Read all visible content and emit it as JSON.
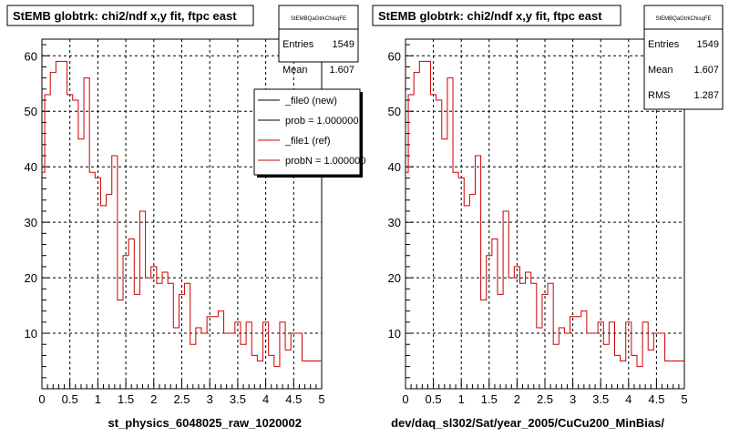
{
  "chart_data": [
    {
      "type": "step",
      "title": "StEMB globtrk: chi2/ndf x,y fit, ftpc east",
      "xlabel": "st_physics_6048025_raw_1020002",
      "xlim": [
        0,
        5
      ],
      "ylim": [
        0,
        63
      ],
      "x_ticks": [
        "0",
        "0.5",
        "1",
        "1.5",
        "2",
        "2.5",
        "3",
        "3.5",
        "4",
        "4.5",
        "5"
      ],
      "y_ticks": [
        "10",
        "20",
        "30",
        "40",
        "50",
        "60"
      ],
      "grid": true,
      "bin_width": 0.1,
      "stats": {
        "name": "StEMBQaGtrkChisqFE",
        "entries_label": "Entries",
        "entries": "1549",
        "mean_label": "Mean",
        "mean": "1.607"
      },
      "legend": {
        "placement": "top-right",
        "entries": [
          "_file0 (new)",
          "prob = 1.000000",
          "_file1 (ref)",
          "probN = 1.000000"
        ],
        "colors": [
          "#000000",
          "#000000",
          "#cc0000",
          "#cc0000"
        ]
      },
      "series": [
        {
          "name": "_file1 (ref)",
          "color": "#cc0000",
          "bin_starts": [
            0,
            0.05,
            0.1,
            0.15,
            0.2,
            0.25,
            0.3,
            0.35,
            0.4,
            0.45,
            0.5,
            0.55,
            0.6,
            0.65,
            0.7,
            0.75,
            0.8,
            0.85,
            0.9,
            0.95,
            1.0,
            1.05,
            1.1,
            1.15,
            1.2,
            1.25,
            1.3,
            1.35,
            1.4,
            1.45,
            1.5,
            1.55,
            1.6,
            1.65,
            1.7,
            1.75,
            1.8,
            1.85,
            1.9,
            1.95,
            2.0,
            2.05,
            2.1,
            2.15,
            2.2,
            2.25,
            2.3,
            2.35,
            2.4,
            2.45,
            2.5,
            2.55,
            2.6,
            2.65,
            2.7,
            2.75,
            2.8,
            2.85,
            2.9,
            2.95,
            3.0,
            3.05,
            3.1,
            3.15,
            3.2,
            3.25,
            3.3,
            3.35,
            3.4,
            3.45,
            3.5,
            3.55,
            3.6,
            3.65,
            3.7,
            3.75,
            3.8,
            3.85,
            3.9,
            3.95,
            4.0,
            4.05,
            4.1,
            4.15,
            4.2,
            4.25,
            4.3,
            4.35,
            4.4,
            4.45,
            4.5,
            4.55,
            4.6,
            4.65,
            4.7,
            4.75,
            4.8,
            4.85,
            4.9,
            4.95
          ],
          "values": [
            39,
            53,
            53,
            57,
            57,
            59,
            59,
            59,
            59,
            53,
            53,
            52,
            52,
            45,
            45,
            56,
            56,
            39,
            39,
            38,
            38,
            33,
            33,
            35,
            35,
            42,
            42,
            16,
            16,
            24,
            24,
            27,
            27,
            17,
            17,
            32,
            32,
            20,
            20,
            22,
            22,
            19,
            19,
            21,
            21,
            19,
            19,
            11,
            11,
            17,
            17,
            19,
            19,
            8,
            8,
            11,
            11,
            10,
            10,
            13,
            13,
            13,
            13,
            14,
            14,
            10,
            10,
            10,
            10,
            12,
            12,
            8,
            8,
            12,
            12,
            6,
            6,
            5,
            5,
            12,
            12,
            6,
            6,
            4,
            4,
            12,
            12,
            7,
            7,
            10,
            10,
            10,
            10,
            5,
            5,
            5,
            5,
            5,
            5,
            5
          ]
        }
      ]
    },
    {
      "type": "step",
      "title": "StEMB globtrk: chi2/ndf x,y fit, ftpc east",
      "xlabel": "dev/daq_sl302/Sat/year_2005/CuCu200_MinBias/",
      "xlim": [
        0,
        5
      ],
      "ylim": [
        0,
        63
      ],
      "x_ticks": [
        "0",
        "0.5",
        "1",
        "1.5",
        "2",
        "2.5",
        "3",
        "3.5",
        "4",
        "4.5",
        "5"
      ],
      "y_ticks": [
        "10",
        "20",
        "30",
        "40",
        "50",
        "60"
      ],
      "grid": true,
      "bin_width": 0.1,
      "stats": {
        "name": "StEMBQaGtrkChisqFE",
        "entries_label": "Entries",
        "entries": "1549",
        "mean_label": "Mean",
        "mean": "1.607",
        "rms_label": "RMS",
        "rms": "1.287"
      },
      "series": [
        {
          "name": "",
          "color": "#cc0000",
          "bin_starts": [
            0,
            0.05,
            0.1,
            0.15,
            0.2,
            0.25,
            0.3,
            0.35,
            0.4,
            0.45,
            0.5,
            0.55,
            0.6,
            0.65,
            0.7,
            0.75,
            0.8,
            0.85,
            0.9,
            0.95,
            1.0,
            1.05,
            1.1,
            1.15,
            1.2,
            1.25,
            1.3,
            1.35,
            1.4,
            1.45,
            1.5,
            1.55,
            1.6,
            1.65,
            1.7,
            1.75,
            1.8,
            1.85,
            1.9,
            1.95,
            2.0,
            2.05,
            2.1,
            2.15,
            2.2,
            2.25,
            2.3,
            2.35,
            2.4,
            2.45,
            2.5,
            2.55,
            2.6,
            2.65,
            2.7,
            2.75,
            2.8,
            2.85,
            2.9,
            2.95,
            3.0,
            3.05,
            3.1,
            3.15,
            3.2,
            3.25,
            3.3,
            3.35,
            3.4,
            3.45,
            3.5,
            3.55,
            3.6,
            3.65,
            3.7,
            3.75,
            3.8,
            3.85,
            3.9,
            3.95,
            4.0,
            4.05,
            4.1,
            4.15,
            4.2,
            4.25,
            4.3,
            4.35,
            4.4,
            4.45,
            4.5,
            4.55,
            4.6,
            4.65,
            4.7,
            4.75,
            4.8,
            4.85,
            4.9,
            4.95
          ],
          "values": [
            39,
            53,
            53,
            57,
            57,
            59,
            59,
            59,
            59,
            53,
            53,
            52,
            52,
            45,
            45,
            56,
            56,
            39,
            39,
            38,
            38,
            33,
            33,
            35,
            35,
            42,
            42,
            16,
            16,
            24,
            24,
            27,
            27,
            17,
            17,
            32,
            32,
            20,
            20,
            22,
            22,
            19,
            19,
            21,
            21,
            19,
            19,
            11,
            11,
            17,
            17,
            19,
            19,
            8,
            8,
            11,
            11,
            10,
            10,
            13,
            13,
            13,
            13,
            14,
            14,
            10,
            10,
            10,
            10,
            12,
            12,
            8,
            8,
            12,
            12,
            6,
            6,
            5,
            5,
            12,
            12,
            6,
            6,
            4,
            4,
            12,
            12,
            7,
            7,
            10,
            10,
            10,
            10,
            5,
            5,
            5,
            5,
            5,
            5,
            5
          ]
        }
      ]
    }
  ]
}
